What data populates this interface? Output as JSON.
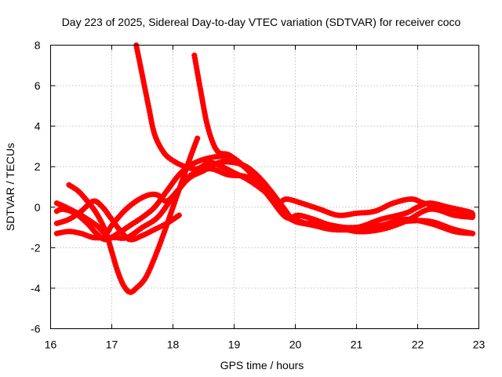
{
  "chart_data": {
    "type": "scatter",
    "title": "Day 223 of 2025, Sidereal Day-to-day VTEC variation (SDTVAR) for receiver coco",
    "xlabel": "GPS time / hours",
    "ylabel": "SDTVAR / TECUs",
    "xlim": [
      16,
      23
    ],
    "ylim": [
      -6,
      8
    ],
    "xticks": [
      16,
      17,
      18,
      19,
      20,
      21,
      22,
      23
    ],
    "yticks": [
      -6,
      -4,
      -2,
      0,
      2,
      4,
      6,
      8
    ],
    "grid": true,
    "marker": "+",
    "color": "#ff0000",
    "series": [
      {
        "name": "trace-1",
        "points": [
          [
            17.4,
            8.0
          ],
          [
            17.5,
            6.5
          ],
          [
            17.6,
            5.0
          ],
          [
            17.7,
            3.6
          ],
          [
            17.85,
            2.7
          ],
          [
            18.0,
            2.3
          ],
          [
            18.2,
            2.0
          ],
          [
            18.4,
            1.9
          ],
          [
            18.6,
            2.2
          ],
          [
            18.8,
            2.0
          ],
          [
            19.0,
            1.7
          ],
          [
            19.2,
            1.4
          ],
          [
            19.4,
            1.0
          ],
          [
            19.6,
            0.5
          ],
          [
            19.8,
            -0.2
          ],
          [
            20.0,
            -0.6
          ],
          [
            20.3,
            -0.9
          ],
          [
            20.6,
            -1.0
          ],
          [
            21.0,
            -1.0
          ],
          [
            21.4,
            -0.9
          ],
          [
            21.8,
            -0.7
          ],
          [
            22.2,
            -0.7
          ],
          [
            22.6,
            -1.1
          ],
          [
            22.9,
            -1.3
          ]
        ]
      },
      {
        "name": "trace-2",
        "points": [
          [
            18.35,
            7.5
          ],
          [
            18.45,
            5.8
          ],
          [
            18.55,
            4.2
          ],
          [
            18.65,
            3.2
          ],
          [
            18.75,
            2.7
          ],
          [
            18.9,
            2.6
          ],
          [
            19.05,
            2.3
          ],
          [
            19.2,
            1.9
          ],
          [
            19.4,
            1.2
          ],
          [
            19.6,
            0.5
          ],
          [
            19.8,
            -0.3
          ],
          [
            20.0,
            -0.7
          ],
          [
            20.3,
            -0.9
          ],
          [
            20.6,
            -1.1
          ],
          [
            21.0,
            -1.1
          ],
          [
            21.4,
            -0.9
          ],
          [
            21.8,
            -0.6
          ],
          [
            22.2,
            -0.8
          ],
          [
            22.6,
            -1.2
          ],
          [
            22.9,
            -1.3
          ]
        ]
      },
      {
        "name": "trace-3",
        "points": [
          [
            16.3,
            1.1
          ],
          [
            16.45,
            0.8
          ],
          [
            16.6,
            0.3
          ],
          [
            16.75,
            -0.3
          ],
          [
            16.9,
            -1.2
          ],
          [
            17.0,
            -2.2
          ],
          [
            17.1,
            -3.2
          ],
          [
            17.2,
            -3.9
          ],
          [
            17.3,
            -4.2
          ],
          [
            17.4,
            -4.0
          ],
          [
            17.55,
            -3.5
          ],
          [
            17.7,
            -2.5
          ],
          [
            17.85,
            -1.3
          ],
          [
            18.0,
            0.0
          ],
          [
            18.15,
            1.3
          ],
          [
            18.3,
            2.6
          ],
          [
            18.4,
            3.4
          ]
        ]
      },
      {
        "name": "trace-4",
        "points": [
          [
            16.1,
            -1.3
          ],
          [
            16.3,
            -1.2
          ],
          [
            16.5,
            -1.3
          ],
          [
            16.7,
            -1.5
          ],
          [
            16.9,
            -1.5
          ],
          [
            17.05,
            -1.5
          ],
          [
            17.25,
            -1.5
          ],
          [
            17.5,
            -1.0
          ],
          [
            17.75,
            -0.5
          ],
          [
            18.0,
            0.5
          ],
          [
            18.25,
            1.4
          ],
          [
            18.5,
            1.8
          ],
          [
            18.75,
            2.2
          ],
          [
            19.0,
            2.2
          ],
          [
            19.2,
            2.0
          ],
          [
            19.4,
            1.5
          ],
          [
            19.6,
            0.8
          ],
          [
            19.8,
            0.0
          ],
          [
            20.0,
            -0.7
          ],
          [
            20.3,
            -0.8
          ],
          [
            20.6,
            -0.9
          ],
          [
            21.0,
            -1.2
          ],
          [
            21.4,
            -1.1
          ],
          [
            21.8,
            -0.7
          ],
          [
            22.2,
            -0.1
          ],
          [
            22.6,
            -0.4
          ],
          [
            22.9,
            -0.5
          ]
        ]
      },
      {
        "name": "trace-5",
        "points": [
          [
            16.1,
            -0.2
          ],
          [
            16.2,
            -0.1
          ],
          [
            16.4,
            -0.3
          ],
          [
            16.6,
            -0.8
          ],
          [
            16.75,
            -1.3
          ],
          [
            16.9,
            -1.6
          ],
          [
            17.1,
            -1.3
          ],
          [
            17.3,
            -0.9
          ],
          [
            17.5,
            -0.5
          ],
          [
            17.7,
            0.0
          ],
          [
            17.9,
            0.8
          ],
          [
            18.1,
            1.6
          ],
          [
            18.3,
            2.1
          ],
          [
            18.55,
            2.4
          ],
          [
            18.8,
            2.5
          ],
          [
            19.0,
            2.3
          ],
          [
            19.2,
            1.9
          ],
          [
            19.4,
            1.2
          ],
          [
            19.6,
            0.4
          ],
          [
            19.85,
            -0.5
          ],
          [
            20.05,
            -0.4
          ],
          [
            20.3,
            -0.6
          ],
          [
            20.6,
            -0.9
          ],
          [
            21.0,
            -1.0
          ],
          [
            21.4,
            -0.6
          ],
          [
            21.8,
            -0.3
          ],
          [
            22.0,
            0.0
          ],
          [
            22.2,
            0.2
          ],
          [
            22.5,
            0.0
          ],
          [
            22.8,
            -0.2
          ],
          [
            22.9,
            -0.3
          ]
        ]
      },
      {
        "name": "trace-6",
        "points": [
          [
            16.1,
            0.2
          ],
          [
            16.25,
            0.0
          ],
          [
            16.5,
            -0.4
          ],
          [
            16.75,
            -0.9
          ],
          [
            16.9,
            -1.3
          ],
          [
            17.0,
            -0.9
          ],
          [
            17.2,
            -0.2
          ],
          [
            17.4,
            0.3
          ],
          [
            17.6,
            0.6
          ],
          [
            17.75,
            0.6
          ],
          [
            17.9,
            0.3
          ],
          [
            18.1,
            0.9
          ],
          [
            18.3,
            1.6
          ],
          [
            18.6,
            1.9
          ],
          [
            18.9,
            1.6
          ],
          [
            19.2,
            1.5
          ],
          [
            19.5,
            1.0
          ],
          [
            19.7,
            0.2
          ],
          [
            19.85,
            0.4
          ],
          [
            20.1,
            0.2
          ],
          [
            20.4,
            -0.1
          ],
          [
            20.7,
            -0.4
          ],
          [
            21.0,
            -0.3
          ],
          [
            21.3,
            -0.2
          ],
          [
            21.6,
            0.2
          ],
          [
            21.9,
            0.4
          ],
          [
            22.1,
            0.2
          ],
          [
            22.4,
            0.0
          ],
          [
            22.7,
            -0.2
          ],
          [
            22.9,
            -0.4
          ]
        ]
      },
      {
        "name": "trace-7",
        "points": [
          [
            16.1,
            -0.8
          ],
          [
            16.3,
            -0.6
          ],
          [
            16.5,
            -0.2
          ],
          [
            16.7,
            0.3
          ],
          [
            16.85,
            0.0
          ],
          [
            17.0,
            -0.6
          ],
          [
            17.15,
            -1.2
          ],
          [
            17.3,
            -1.6
          ],
          [
            17.5,
            -1.4
          ],
          [
            17.7,
            -1.1
          ],
          [
            17.9,
            -0.8
          ],
          [
            18.1,
            -0.4
          ]
        ]
      }
    ]
  }
}
